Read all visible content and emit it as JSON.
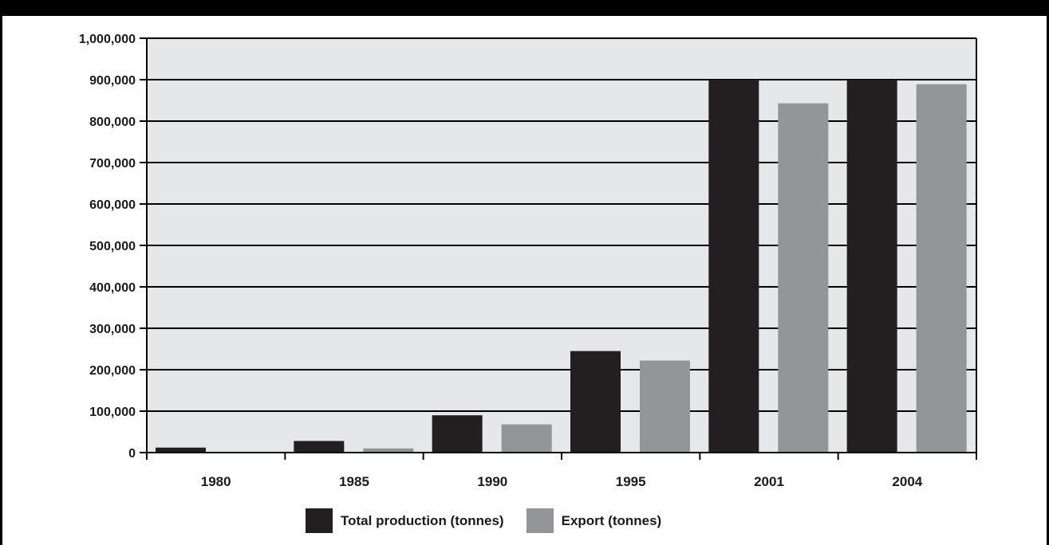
{
  "chart_data": {
    "type": "bar",
    "categories": [
      "1980",
      "1985",
      "1990",
      "1995",
      "2001",
      "2004"
    ],
    "series": [
      {
        "name": "Total production (tonnes)",
        "color": "#231f20",
        "values": [
          12000,
          28000,
          90000,
          245000,
          900000,
          900000
        ]
      },
      {
        "name": "Export (tonnes)",
        "color": "#939598",
        "values": [
          0,
          10000,
          68000,
          222000,
          843000,
          889000
        ]
      }
    ],
    "ylim": [
      0,
      1000000
    ],
    "yticks": [
      0,
      100000,
      200000,
      300000,
      400000,
      500000,
      600000,
      700000,
      800000,
      900000,
      1000000
    ],
    "ytick_labels": [
      "0",
      "100,000",
      "200,000",
      "300,000",
      "400,000",
      "500,000",
      "600,000",
      "700,000",
      "800,000",
      "900,000",
      "1,000,000"
    ],
    "grid": true,
    "legend_position": "bottom-center",
    "plot_background": "#e6e7e8"
  }
}
